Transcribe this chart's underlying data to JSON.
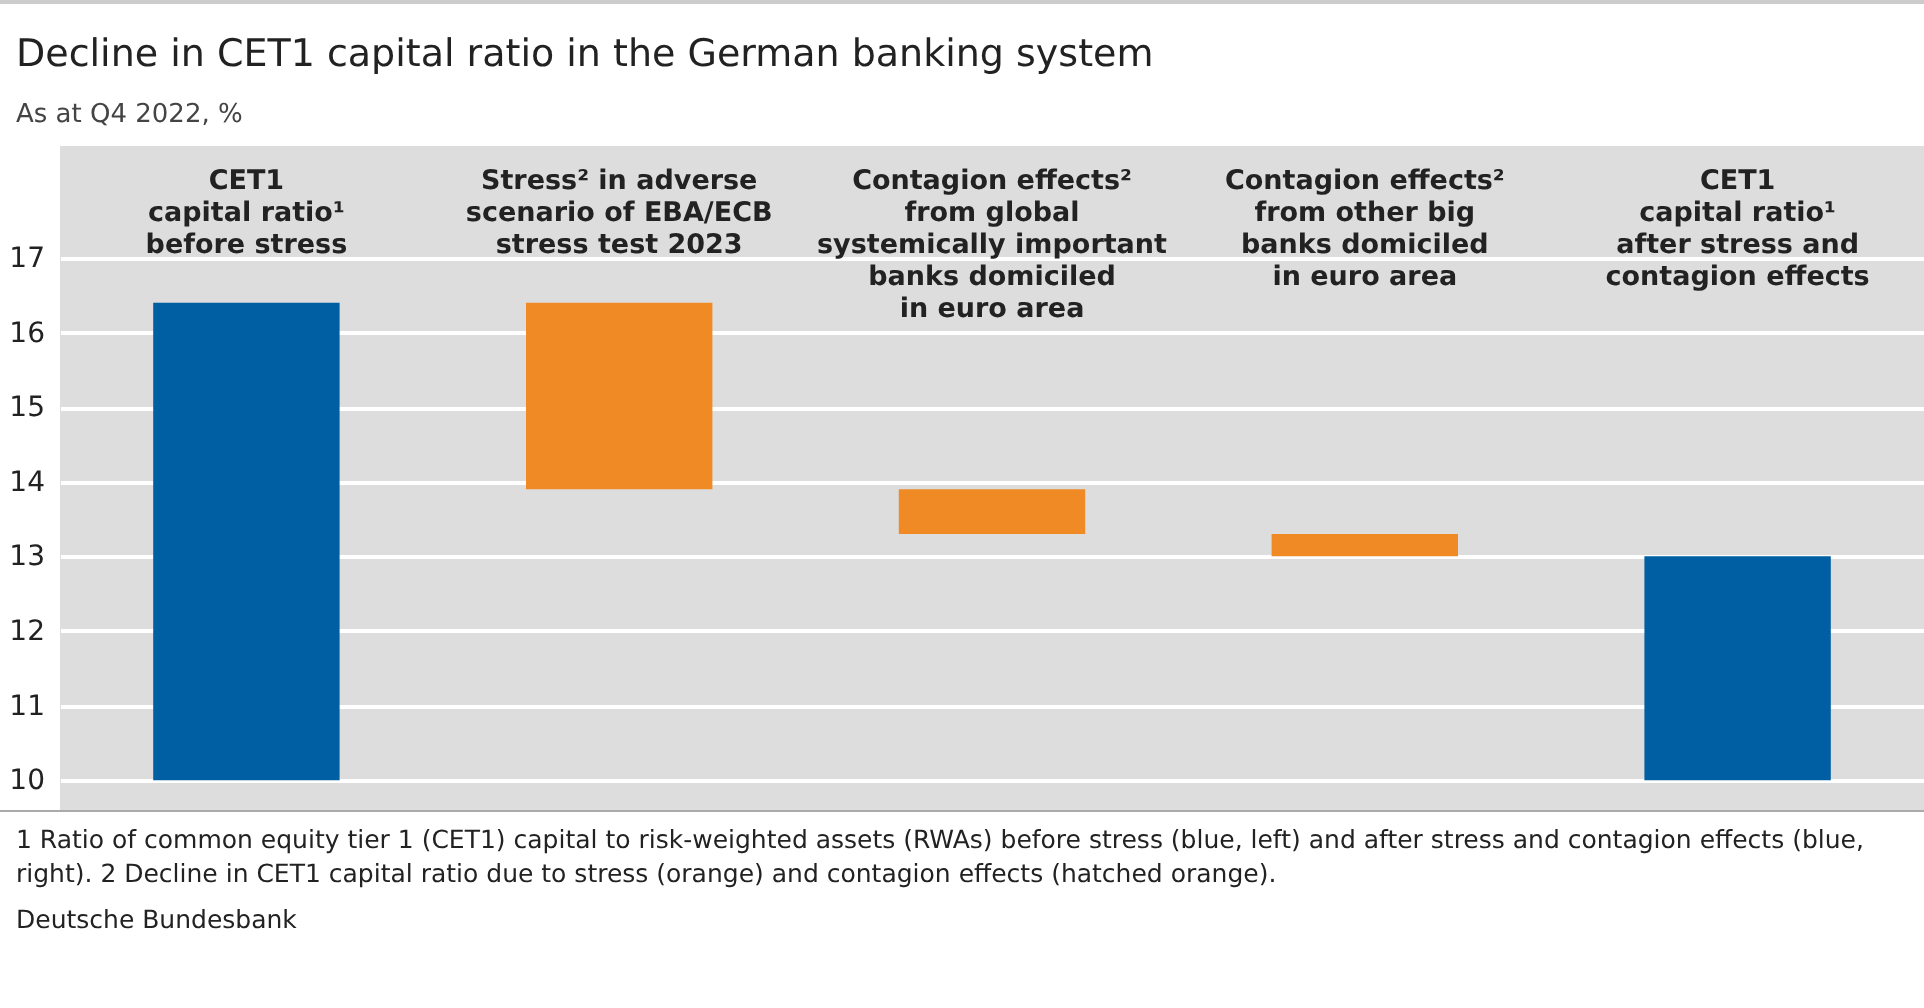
{
  "chart_data": {
    "type": "bar",
    "title": "Decline in CET1 capital ratio in the German banking system",
    "subtitle": "As at Q4 2022, %",
    "categories": [
      "CET1\ncapital ratio¹\nbefore stress",
      "Stress² in adverse\nscenario of EBA/ECB\nstress test 2023",
      "Contagion effects²\nfrom global\nsystemically important\nbanks domiciled\nin euro area",
      "Contagion effects²\nfrom other big\nbanks domiciled\nin euro area",
      "CET1\ncapital ratio¹\nafter stress and\ncontagion effects"
    ],
    "values": [
      6.4,
      2.5,
      0.6,
      0.3,
      3.0
    ],
    "base": [
      10,
      13.9,
      13.3,
      13.0,
      10
    ],
    "colors": [
      "#005ea2",
      "#f08a24",
      "#f08a24",
      "#f08a24",
      "#005ea2"
    ],
    "ylim": [
      9.6,
      18.5
    ],
    "yticks": [
      10,
      11,
      12,
      13,
      14,
      15,
      16,
      17
    ],
    "grid": "y",
    "annotations": [
      "1 Ratio of common equity tier 1 (CET1) capital to risk-weighted assets (RWAs) before stress (blue, left) and after stress and contagion effects (blue, right). 2 Decline in CET1 capital ratio due to stress (orange) and contagion effects (hatched orange).",
      "Deutsche Bundesbank"
    ]
  }
}
